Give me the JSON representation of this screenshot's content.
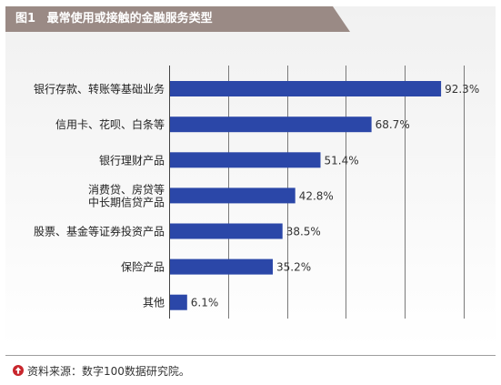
{
  "figure": {
    "number": "图1",
    "title": "最常使用或接触的金融服务类型"
  },
  "chart_data": {
    "type": "bar",
    "orientation": "horizontal",
    "categories": [
      [
        "银行存款、转账等基础业务"
      ],
      [
        "信用卡、花呗、白条等"
      ],
      [
        "银行理财产品"
      ],
      [
        "消费贷、房贷等",
        "中长期信贷产品"
      ],
      [
        "股票、基金等证券投资产品"
      ],
      [
        "保险产品"
      ],
      [
        "其他"
      ]
    ],
    "values": [
      92.3,
      68.7,
      51.4,
      42.8,
      38.5,
      35.2,
      6.1
    ],
    "value_labels": [
      "92.3%",
      "68.7%",
      "51.4%",
      "42.8%",
      "38.5%",
      "35.2%",
      "6.1%"
    ],
    "xlim": [
      0,
      100
    ],
    "grid": true,
    "bar_color": "#2b47a8"
  },
  "footer": {
    "source": "资料来源：数字100数据研究院。",
    "icon": "up-arrow-icon",
    "icon_color": "#c8262c"
  }
}
